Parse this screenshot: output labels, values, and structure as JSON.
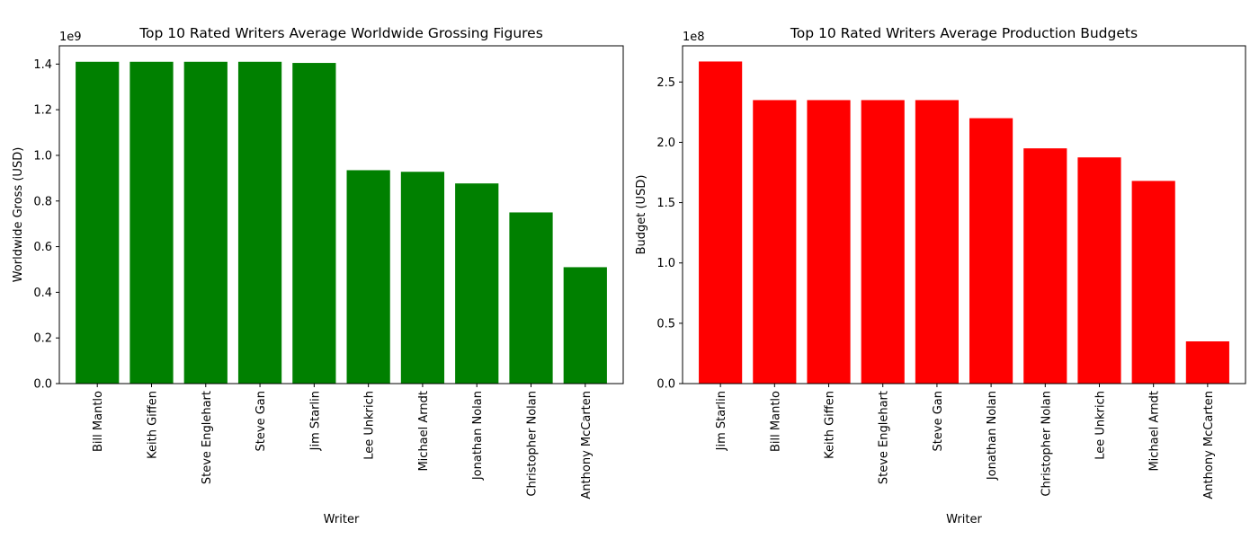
{
  "chart_data": [
    {
      "type": "bar",
      "title": "Top 10 Rated Writers Average Worldwide Grossing Figures",
      "xlabel": "Writer",
      "ylabel": "Worldwide Gross (USD)",
      "offset_label": "1e9",
      "scale": 1000000000,
      "ylim": [
        0,
        1.48
      ],
      "yticks": [
        0.0,
        0.2,
        0.4,
        0.6,
        0.8,
        1.0,
        1.2,
        1.4
      ],
      "color": "#008000",
      "categories": [
        "Bill Mantlo",
        "Keith Giffen",
        "Steve Englehart",
        "Steve Gan",
        "Jim Starlin",
        "Lee Unkrich",
        "Michael Arndt",
        "Jonathan Nolan",
        "Christopher Nolan",
        "Anthony McCarten"
      ],
      "values": [
        1.41,
        1.41,
        1.41,
        1.41,
        1.405,
        0.935,
        0.928,
        0.877,
        0.75,
        0.51
      ]
    },
    {
      "type": "bar",
      "title": "Top 10 Rated Writers Average Production Budgets",
      "xlabel": "Writer",
      "ylabel": "Budget (USD)",
      "offset_label": "1e8",
      "scale": 100000000,
      "ylim": [
        0,
        2.8
      ],
      "yticks": [
        0.0,
        0.5,
        1.0,
        1.5,
        2.0,
        2.5
      ],
      "color": "#ff0000",
      "categories": [
        "Jim Starlin",
        "Bill Mantlo",
        "Keith Giffen",
        "Steve Englehart",
        "Steve Gan",
        "Jonathan Nolan",
        "Christopher Nolan",
        "Lee Unkrich",
        "Michael Arndt",
        "Anthony McCarten"
      ],
      "values": [
        2.67,
        2.35,
        2.35,
        2.35,
        2.35,
        2.2,
        1.95,
        1.875,
        1.68,
        0.35
      ]
    }
  ]
}
